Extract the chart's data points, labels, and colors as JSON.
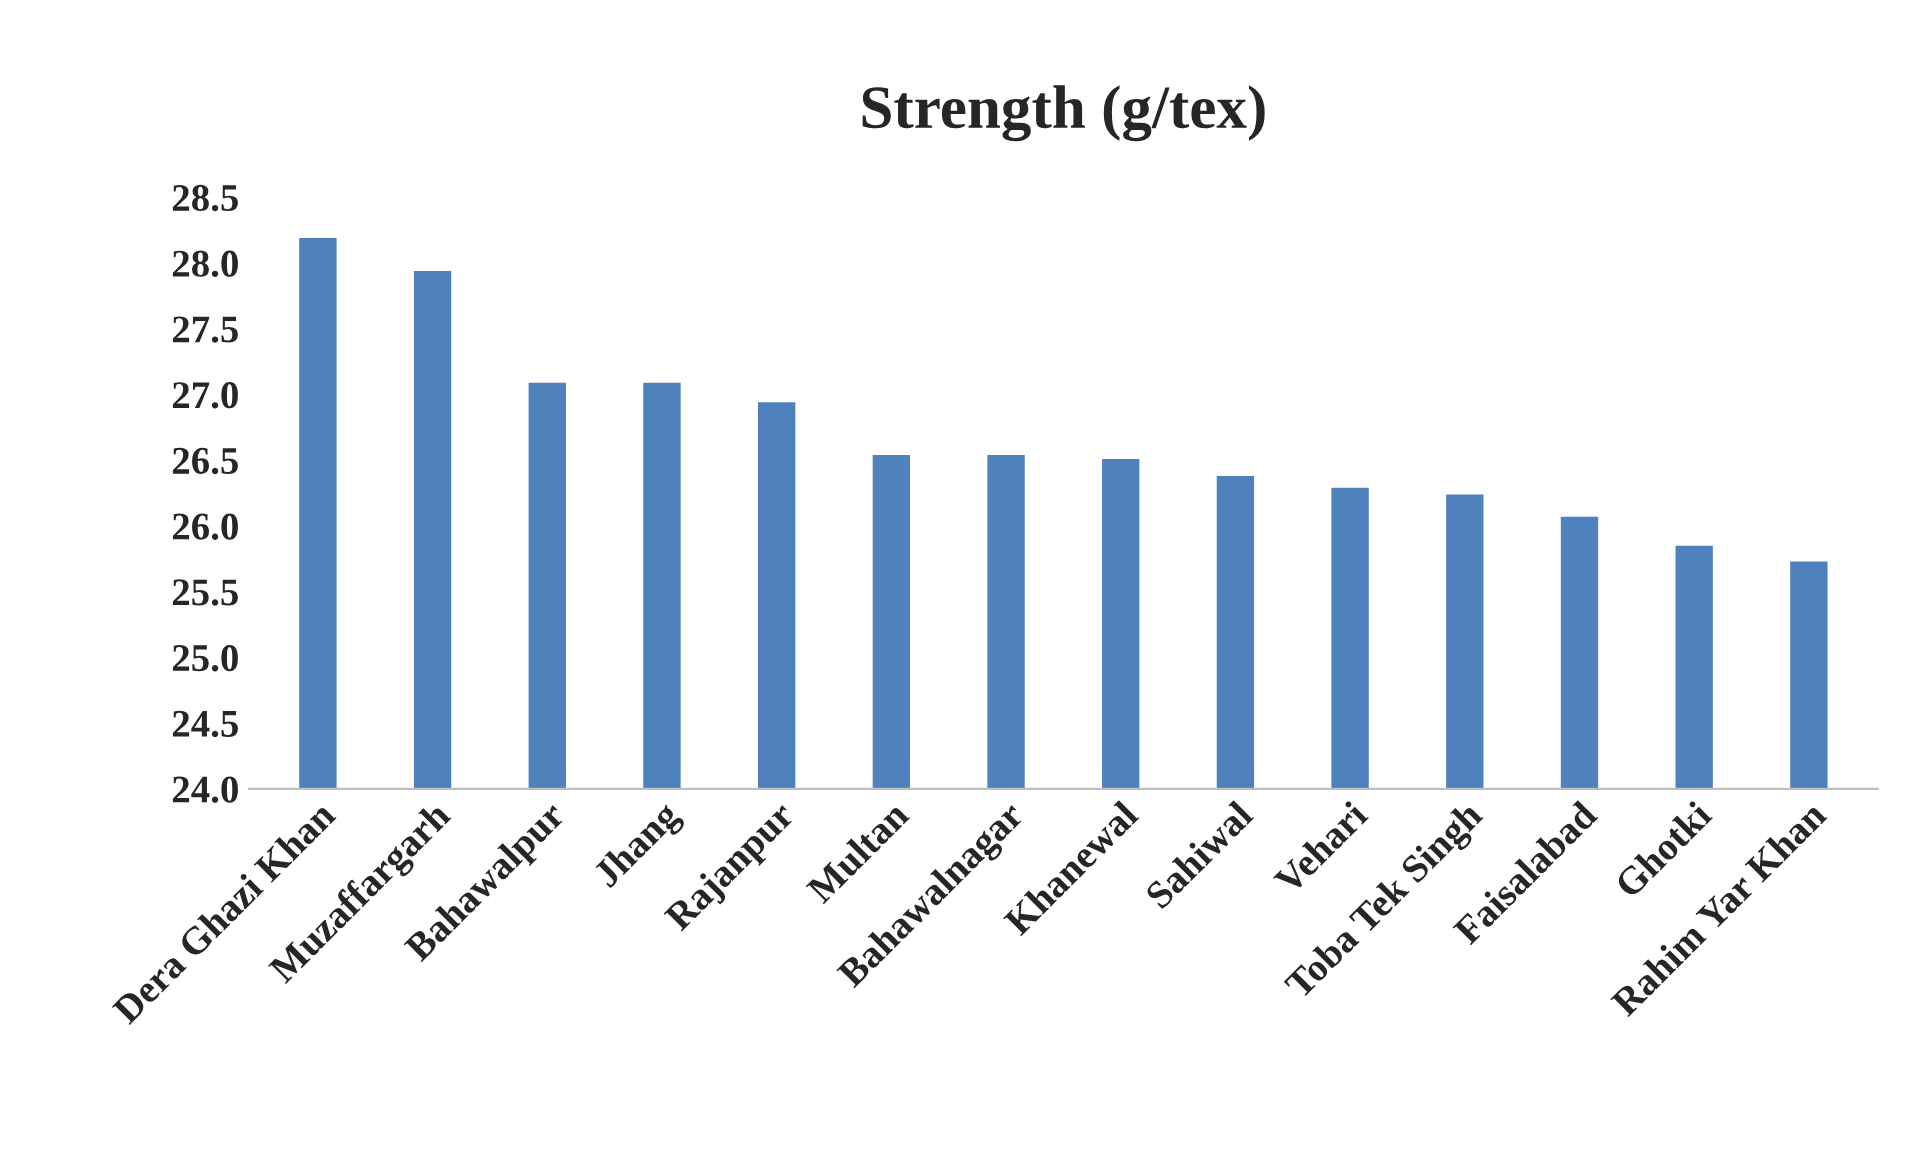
{
  "chart_data": {
    "type": "bar",
    "title": "Strength (g/tex)",
    "categories": [
      "Dera Ghazi Khan",
      "Muzaffargarh",
      "Bahawalpur",
      "Jhang",
      "Rajanpur",
      "Multan",
      "Bahawalnagar",
      "Khanewal",
      "Sahiwal",
      "Vehari",
      "Toba Tek Singh",
      "Faisalabad",
      "Ghotki",
      "Rahim Yar Khan"
    ],
    "values": [
      28.2,
      27.95,
      27.1,
      27.1,
      26.95,
      26.55,
      26.55,
      26.52,
      26.39,
      26.3,
      26.25,
      26.08,
      25.86,
      25.74
    ],
    "color": "#4f81bd",
    "ylim": [
      24.0,
      28.5
    ],
    "yticks": [
      {
        "value": 24.0,
        "label": "24.0"
      },
      {
        "value": 24.5,
        "label": "24.5"
      },
      {
        "value": 25.0,
        "label": "25.0"
      },
      {
        "value": 25.5,
        "label": "25.5"
      },
      {
        "value": 26.0,
        "label": "26.0"
      },
      {
        "value": 26.5,
        "label": "26.5"
      },
      {
        "value": 27.0,
        "label": "27.0"
      },
      {
        "value": 27.5,
        "label": "27.5"
      },
      {
        "value": 28.0,
        "label": "28.0"
      },
      {
        "value": 28.5,
        "label": "28.5"
      }
    ],
    "grid": false
  }
}
